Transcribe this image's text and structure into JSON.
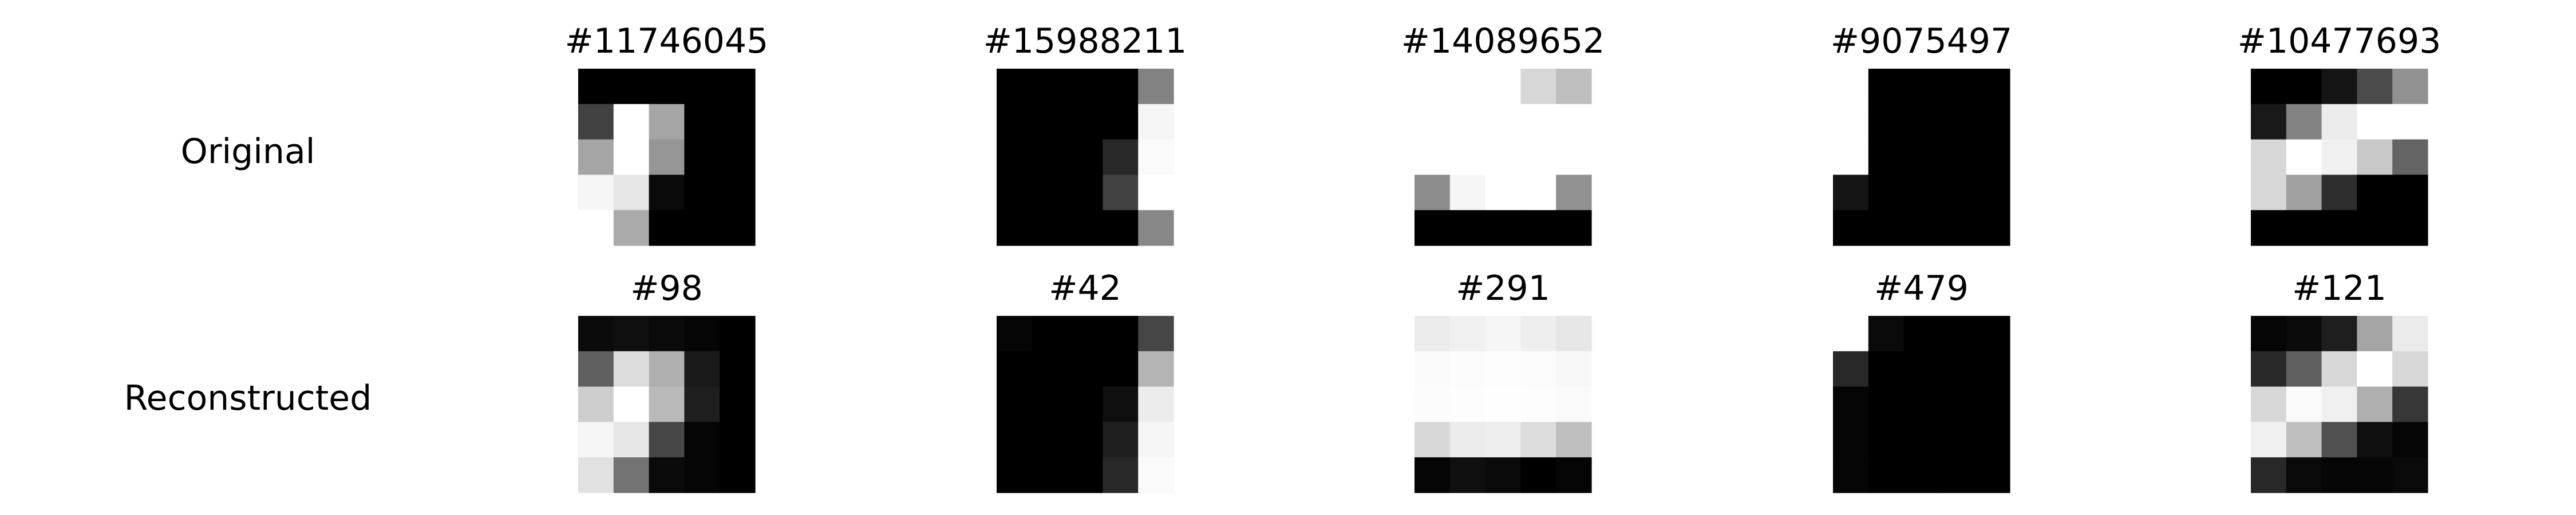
{
  "row_labels": {
    "original": "Original",
    "reconstructed": "Reconstructed"
  },
  "colormap": "gray",
  "columns": [
    {
      "original_title": "#11746045",
      "reconstructed_title": "#98",
      "original": [
        [
          0,
          0,
          0,
          0,
          0
        ],
        [
          65,
          255,
          165,
          0,
          0
        ],
        [
          165,
          255,
          150,
          0,
          0
        ],
        [
          245,
          230,
          10,
          0,
          0
        ],
        [
          255,
          170,
          0,
          0,
          0
        ]
      ],
      "reconstructed": [
        [
          10,
          15,
          10,
          5,
          0
        ],
        [
          95,
          220,
          175,
          25,
          0
        ],
        [
          205,
          255,
          185,
          30,
          0
        ],
        [
          245,
          230,
          70,
          5,
          0
        ],
        [
          225,
          115,
          10,
          5,
          0
        ]
      ]
    },
    {
      "original_title": "#15988211",
      "reconstructed_title": "#42",
      "original": [
        [
          0,
          0,
          0,
          0,
          130
        ],
        [
          0,
          0,
          0,
          0,
          245
        ],
        [
          0,
          0,
          0,
          40,
          250
        ],
        [
          0,
          0,
          0,
          65,
          255
        ],
        [
          0,
          0,
          0,
          0,
          135
        ]
      ],
      "reconstructed": [
        [
          5,
          0,
          0,
          0,
          70
        ],
        [
          0,
          0,
          0,
          0,
          180
        ],
        [
          0,
          0,
          0,
          15,
          235
        ],
        [
          0,
          0,
          0,
          30,
          245
        ],
        [
          0,
          0,
          0,
          40,
          250
        ]
      ]
    },
    {
      "original_title": "#14089652",
      "reconstructed_title": "#291",
      "original": [
        [
          255,
          255,
          255,
          215,
          190
        ],
        [
          255,
          255,
          255,
          255,
          255
        ],
        [
          255,
          255,
          255,
          255,
          255
        ],
        [
          140,
          245,
          255,
          255,
          145
        ],
        [
          0,
          0,
          0,
          0,
          0
        ]
      ],
      "reconstructed": [
        [
          235,
          240,
          245,
          238,
          230
        ],
        [
          250,
          252,
          253,
          252,
          248
        ],
        [
          252,
          253,
          254,
          253,
          250
        ],
        [
          215,
          235,
          238,
          220,
          190
        ],
        [
          5,
          15,
          10,
          0,
          5
        ]
      ]
    },
    {
      "original_title": "#9075497",
      "reconstructed_title": "#479",
      "original": [
        [
          255,
          0,
          0,
          0,
          0
        ],
        [
          255,
          0,
          0,
          0,
          0
        ],
        [
          255,
          0,
          0,
          0,
          0
        ],
        [
          20,
          0,
          0,
          0,
          0
        ],
        [
          0,
          0,
          0,
          0,
          0
        ]
      ],
      "reconstructed": [
        [
          255,
          10,
          0,
          0,
          0
        ],
        [
          40,
          0,
          0,
          0,
          0
        ],
        [
          5,
          0,
          0,
          0,
          0
        ],
        [
          5,
          0,
          0,
          0,
          0
        ],
        [
          5,
          0,
          0,
          0,
          0
        ]
      ]
    },
    {
      "original_title": "#10477693",
      "reconstructed_title": "#121",
      "original": [
        [
          0,
          0,
          20,
          75,
          145
        ],
        [
          25,
          130,
          235,
          255,
          255
        ],
        [
          215,
          255,
          240,
          200,
          100
        ],
        [
          215,
          160,
          45,
          0,
          0
        ],
        [
          0,
          0,
          0,
          0,
          0
        ]
      ],
      "reconstructed": [
        [
          5,
          10,
          30,
          165,
          235
        ],
        [
          40,
          95,
          215,
          255,
          215
        ],
        [
          215,
          250,
          240,
          175,
          55
        ],
        [
          240,
          190,
          80,
          15,
          5
        ],
        [
          40,
          10,
          5,
          5,
          10
        ]
      ]
    }
  ]
}
